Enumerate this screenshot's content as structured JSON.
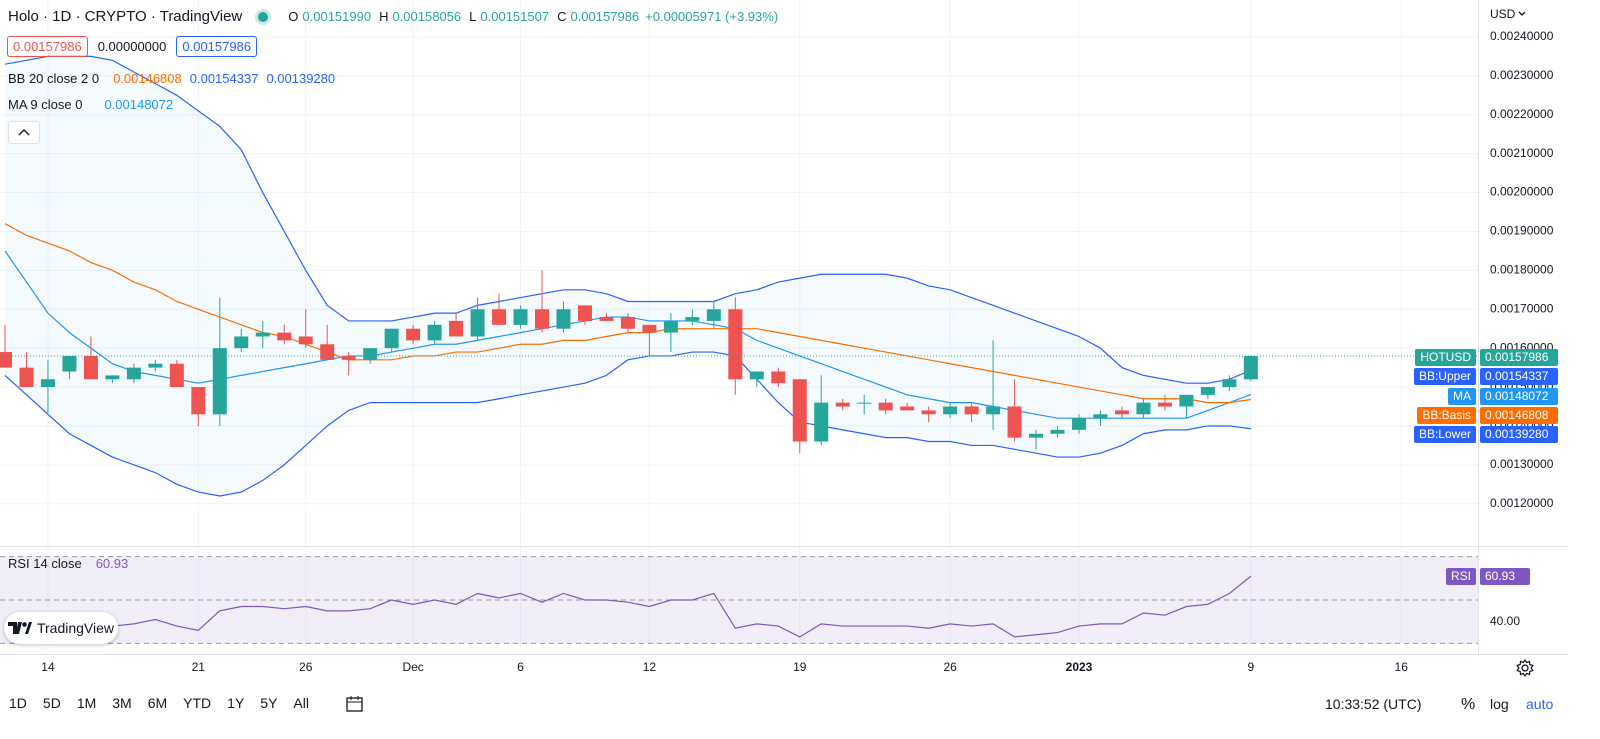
{
  "header": {
    "title": "Holo · 1D · CRYPTO · TradingView",
    "ohlc": [
      {
        "label": "O",
        "value": "0.00151990"
      },
      {
        "label": "H",
        "value": "0.00158056"
      },
      {
        "label": "L",
        "value": "0.00151507"
      },
      {
        "label": "C",
        "value": "0.00157986"
      }
    ],
    "change": "+0.00005971 (+3.93%)",
    "currency": "USD"
  },
  "inputs": [
    "0.00157986",
    "0.00000000",
    "0.00157986"
  ],
  "badge": "TradingView",
  "toolbar": {
    "ranges": [
      "1D",
      "5D",
      "1M",
      "3M",
      "6M",
      "YTD",
      "1Y",
      "5Y",
      "All"
    ],
    "time": "10:33:52 (UTC)",
    "percent": "%",
    "log": "log",
    "auto": "auto"
  },
  "chart_data": [
    {
      "type": "candlestick",
      "symbol": "HOTUSD",
      "indicator_labels": {
        "bb": "BB 20 close 2 0",
        "ma": "MA 9 close 0"
      },
      "up_color": "#26a69a",
      "down_color": "#ef5350",
      "grid": true,
      "categories": [
        null,
        null,
        "14",
        null,
        null,
        null,
        null,
        null,
        null,
        "21",
        null,
        null,
        null,
        null,
        "26",
        null,
        null,
        null,
        null,
        "Dec",
        null,
        null,
        null,
        null,
        "6",
        null,
        null,
        null,
        null,
        null,
        "12",
        null,
        null,
        null,
        null,
        null,
        null,
        "19",
        null,
        null,
        null,
        null,
        null,
        null,
        "26",
        null,
        null,
        null,
        null,
        null,
        "2023",
        null,
        null,
        null,
        null,
        null,
        null,
        null,
        "9",
        null,
        null,
        null,
        null,
        null,
        null,
        "16"
      ],
      "open": [
        0.00159,
        0.00155,
        0.0015,
        0.00154,
        0.00158,
        0.00152,
        0.00152,
        0.00155,
        0.00156,
        0.0015,
        0.00143,
        0.0016,
        0.00163,
        0.00164,
        0.00163,
        0.00161,
        0.00158,
        0.00157,
        0.0016,
        0.00165,
        0.00162,
        0.00167,
        0.00163,
        0.0017,
        0.00166,
        0.0017,
        0.00165,
        0.00171,
        0.00168,
        0.00168,
        0.00166,
        0.00164,
        0.00167,
        0.00167,
        0.0017,
        0.00152,
        0.00154,
        0.00152,
        0.00136,
        0.00146,
        0.00146,
        0.00146,
        0.00145,
        0.00144,
        0.00143,
        0.00145,
        0.00143,
        0.00145,
        0.00137,
        0.00138,
        0.00139,
        0.00142,
        0.00144,
        0.00143,
        0.00146,
        0.00145,
        0.00148,
        0.0015,
        0.0015199,
        null,
        null,
        null,
        null,
        null,
        null,
        null
      ],
      "high": [
        0.00166,
        0.00159,
        0.00157,
        0.00158,
        0.00163,
        0.00153,
        0.00156,
        0.00157,
        0.00157,
        0.0015,
        0.00173,
        0.00165,
        0.00167,
        0.00166,
        0.0017,
        0.00166,
        0.00159,
        0.0016,
        0.00165,
        0.00166,
        0.00167,
        0.00169,
        0.00173,
        0.00174,
        0.00171,
        0.0018,
        0.00172,
        0.00171,
        0.00169,
        0.00169,
        0.00166,
        0.00169,
        0.0017,
        0.00172,
        0.00173,
        0.00154,
        0.00155,
        0.00152,
        0.00153,
        0.00147,
        0.00148,
        0.00147,
        0.00146,
        0.00145,
        0.00146,
        0.00146,
        0.00162,
        0.00152,
        0.00139,
        0.0014,
        0.00143,
        0.00144,
        0.00145,
        0.00147,
        0.00148,
        0.00148,
        0.0015,
        0.00153,
        0.00158056,
        null,
        null,
        null,
        null,
        null,
        null,
        null
      ],
      "low": [
        0.00155,
        0.0015,
        0.00143,
        0.00152,
        0.00152,
        0.00151,
        0.00151,
        0.00154,
        0.0015,
        0.0014,
        0.0014,
        0.00159,
        0.0016,
        0.00161,
        0.0016,
        0.00157,
        0.00153,
        0.00156,
        0.00159,
        0.00161,
        0.00161,
        0.00163,
        0.00162,
        0.00166,
        0.00165,
        0.00164,
        0.00164,
        0.00166,
        0.00167,
        0.00164,
        0.00158,
        0.00159,
        0.00166,
        0.00165,
        0.00148,
        0.0015,
        0.0015,
        0.00133,
        0.00135,
        0.00144,
        0.00143,
        0.00143,
        0.00144,
        0.00141,
        0.00142,
        0.00141,
        0.00139,
        0.00136,
        0.00134,
        0.00137,
        0.00138,
        0.0014,
        0.00142,
        0.00142,
        0.00144,
        0.00142,
        0.00147,
        0.00149,
        0.00151507,
        null,
        null,
        null,
        null,
        null,
        null,
        null
      ],
      "close": [
        0.00155,
        0.0015,
        0.00152,
        0.00158,
        0.00152,
        0.00153,
        0.00155,
        0.00156,
        0.0015,
        0.00143,
        0.0016,
        0.00163,
        0.00164,
        0.00162,
        0.00161,
        0.00157,
        0.00157,
        0.0016,
        0.00165,
        0.00162,
        0.00166,
        0.00163,
        0.0017,
        0.00166,
        0.0017,
        0.00165,
        0.0017,
        0.00167,
        0.00167,
        0.00165,
        0.00164,
        0.00167,
        0.00168,
        0.0017,
        0.00152,
        0.00154,
        0.00151,
        0.00136,
        0.00146,
        0.00145,
        0.00146,
        0.00144,
        0.00144,
        0.00143,
        0.00145,
        0.00143,
        0.00145,
        0.00137,
        0.00138,
        0.00139,
        0.00142,
        0.00143,
        0.00143,
        0.00146,
        0.00145,
        0.00148,
        0.0015,
        0.00152,
        0.00157986,
        null,
        null,
        null,
        null,
        null,
        null,
        null
      ],
      "series": [
        {
          "name": "BB:Upper",
          "color": "#2962ff",
          "values": [
            0.00233,
            0.00234,
            0.00235,
            0.00235,
            0.00235,
            0.00234,
            0.00231,
            0.00228,
            0.00225,
            0.00221,
            0.00217,
            0.00211,
            0.002,
            0.0019,
            0.0018,
            0.00171,
            0.00167,
            0.00167,
            0.00167,
            0.00168,
            0.00169,
            0.00169,
            0.00171,
            0.00172,
            0.00173,
            0.00174,
            0.00175,
            0.00175,
            0.00174,
            0.00172,
            0.00172,
            0.00172,
            0.00172,
            0.00172,
            0.00174,
            0.00175,
            0.00177,
            0.00178,
            0.00179,
            0.00179,
            0.00179,
            0.00179,
            0.00178,
            0.00176,
            0.00175,
            0.00173,
            0.00171,
            0.00169,
            0.00167,
            0.00165,
            0.00163,
            0.0016,
            0.00155,
            0.00153,
            0.00152,
            0.00151,
            0.00151,
            0.00152,
            0.00154337,
            null,
            null,
            null,
            null,
            null,
            null,
            null
          ],
          "value_labels": [
            null,
            null,
            null,
            null,
            null,
            null,
            null,
            null,
            null,
            null,
            null,
            null,
            null,
            null,
            null,
            null,
            null,
            null,
            null,
            null,
            null,
            null,
            null,
            null,
            null,
            null,
            null,
            null,
            null,
            null,
            null,
            null,
            null,
            null,
            null,
            null,
            null,
            null,
            null,
            null,
            null,
            null,
            null,
            null,
            null,
            null,
            null,
            null,
            null,
            null,
            null,
            null,
            null,
            null,
            null,
            null,
            null,
            null,
            "0.00154337",
            null,
            null,
            null,
            null,
            null,
            null,
            null
          ]
        },
        {
          "name": "MA",
          "color": "#2196f3",
          "values": [
            0.00185,
            0.00177,
            0.00169,
            0.00164,
            0.0016,
            0.00156,
            0.00154,
            0.00153,
            0.00152,
            0.00151,
            0.00152,
            0.00153,
            0.00154,
            0.00155,
            0.00156,
            0.00157,
            0.00158,
            0.00158,
            0.00159,
            0.0016,
            0.00161,
            0.00161,
            0.00162,
            0.00163,
            0.00164,
            0.00165,
            0.00166,
            0.00167,
            0.00168,
            0.00168,
            0.00167,
            0.00167,
            0.00167,
            0.00166,
            0.00165,
            0.00162,
            0.0016,
            0.00158,
            0.00156,
            0.00154,
            0.00152,
            0.0015,
            0.00148,
            0.00147,
            0.00146,
            0.00146,
            0.00145,
            0.00144,
            0.00143,
            0.00142,
            0.00142,
            0.00142,
            0.00142,
            0.00142,
            0.00142,
            0.00142,
            0.00144,
            0.00146,
            0.00148072,
            null,
            null,
            null,
            null,
            null,
            null,
            null
          ],
          "value_labels": [
            null,
            null,
            null,
            null,
            null,
            null,
            null,
            null,
            null,
            null,
            null,
            null,
            null,
            null,
            null,
            null,
            null,
            null,
            null,
            null,
            null,
            null,
            null,
            null,
            null,
            null,
            null,
            null,
            null,
            null,
            null,
            null,
            null,
            null,
            null,
            null,
            null,
            null,
            null,
            null,
            null,
            null,
            null,
            null,
            null,
            null,
            null,
            null,
            null,
            null,
            null,
            null,
            null,
            null,
            null,
            null,
            null,
            null,
            "0.00148072",
            null,
            null,
            null,
            null,
            null,
            null,
            null
          ]
        },
        {
          "name": "BB:Basis",
          "color": "#ff6d00",
          "values": [
            0.00192,
            0.00189,
            0.00187,
            0.00185,
            0.00182,
            0.0018,
            0.00177,
            0.00175,
            0.00172,
            0.0017,
            0.00168,
            0.00166,
            0.00164,
            0.00163,
            0.00161,
            0.00159,
            0.00157,
            0.00157,
            0.00157,
            0.00158,
            0.00158,
            0.00159,
            0.00159,
            0.0016,
            0.00161,
            0.00161,
            0.00162,
            0.00162,
            0.00163,
            0.00164,
            0.00164,
            0.00165,
            0.00165,
            0.00165,
            0.00165,
            0.00165,
            0.00164,
            0.00163,
            0.00162,
            0.00161,
            0.0016,
            0.00159,
            0.00158,
            0.00157,
            0.00156,
            0.00155,
            0.00154,
            0.00153,
            0.00152,
            0.00151,
            0.0015,
            0.00149,
            0.00148,
            0.00147,
            0.00147,
            0.00147,
            0.00146,
            0.00146,
            0.00146808,
            null,
            null,
            null,
            null,
            null,
            null,
            null
          ],
          "value_labels": [
            null,
            null,
            null,
            null,
            null,
            null,
            null,
            null,
            null,
            null,
            null,
            null,
            null,
            null,
            null,
            null,
            null,
            null,
            null,
            null,
            null,
            null,
            null,
            null,
            null,
            null,
            null,
            null,
            null,
            null,
            null,
            null,
            null,
            null,
            null,
            null,
            null,
            null,
            null,
            null,
            null,
            null,
            null,
            null,
            null,
            null,
            null,
            null,
            null,
            null,
            null,
            null,
            null,
            null,
            null,
            null,
            null,
            null,
            "0.00146808",
            null,
            null,
            null,
            null,
            null,
            null,
            null
          ]
        },
        {
          "name": "BB:Lower",
          "color": "#2962ff",
          "values": [
            0.00153,
            0.00148,
            0.00143,
            0.00138,
            0.00135,
            0.00132,
            0.0013,
            0.00128,
            0.00125,
            0.00123,
            0.00122,
            0.00123,
            0.00126,
            0.0013,
            0.00135,
            0.0014,
            0.00144,
            0.00146,
            0.00146,
            0.00146,
            0.00146,
            0.00146,
            0.00146,
            0.00147,
            0.00148,
            0.00149,
            0.0015,
            0.00151,
            0.00153,
            0.00157,
            0.00158,
            0.00158,
            0.00159,
            0.00159,
            0.00158,
            0.00152,
            0.00146,
            0.00141,
            0.0014,
            0.00139,
            0.00138,
            0.00137,
            0.00137,
            0.00136,
            0.00136,
            0.00135,
            0.00135,
            0.00134,
            0.00133,
            0.00132,
            0.00132,
            0.00133,
            0.00135,
            0.00138,
            0.00139,
            0.00139,
            0.0014,
            0.0014,
            0.0013928,
            null,
            null,
            null,
            null,
            null,
            null,
            null
          ],
          "value_labels": [
            null,
            null,
            null,
            null,
            null,
            null,
            null,
            null,
            null,
            null,
            null,
            null,
            null,
            null,
            null,
            null,
            null,
            null,
            null,
            null,
            null,
            null,
            null,
            null,
            null,
            null,
            null,
            null,
            null,
            null,
            null,
            null,
            null,
            null,
            null,
            null,
            null,
            null,
            null,
            null,
            null,
            null,
            null,
            null,
            null,
            null,
            null,
            null,
            null,
            null,
            null,
            null,
            null,
            null,
            null,
            null,
            null,
            null,
            "0.00139280",
            null,
            null,
            null,
            null,
            null,
            null,
            null
          ]
        }
      ],
      "ylim": [
        0.001094,
        0.002495
      ],
      "yticks": [
        {
          "value": 0.0012,
          "label": "0.00120000"
        },
        {
          "value": 0.0013,
          "label": "0.00130000"
        },
        {
          "value": 0.0014,
          "label": "0.00140000"
        },
        {
          "value": 0.0015,
          "label": "0.00150000"
        },
        {
          "value": 0.0016,
          "label": "0.00160000"
        },
        {
          "value": 0.0017,
          "label": "0.00170000"
        },
        {
          "value": 0.0018,
          "label": "0.00180000"
        },
        {
          "value": 0.0019,
          "label": "0.00190000"
        },
        {
          "value": 0.002,
          "label": "0.00200000"
        },
        {
          "value": 0.0021,
          "label": "0.00210000"
        },
        {
          "value": 0.0022,
          "label": "0.00220000"
        },
        {
          "value": 0.0023,
          "label": "0.00230000"
        },
        {
          "value": 0.0024,
          "label": "0.00240000"
        }
      ]
    },
    {
      "type": "line",
      "title": "RSI 14 close",
      "series": [
        {
          "name": "RSI",
          "color": "#7e57c2",
          "values": [
            40,
            38,
            36,
            39,
            40,
            38,
            39,
            41,
            38,
            36,
            45,
            47,
            47,
            46,
            47,
            45,
            45,
            46,
            50,
            48,
            50,
            48,
            53,
            51,
            53,
            49,
            53,
            50,
            50,
            49,
            47,
            50,
            50,
            53,
            37,
            39,
            38,
            33,
            39,
            38,
            38,
            38,
            38,
            37,
            39,
            38,
            39,
            33,
            34,
            35,
            38,
            39,
            39,
            44,
            43,
            47,
            48,
            53,
            60.93,
            null,
            null,
            null,
            null,
            null,
            null,
            null
          ]
        }
      ],
      "ylim": [
        26.96,
        73.96
      ],
      "yticks": [
        {
          "value": 40,
          "label": "40.00"
        }
      ],
      "bands": [
        70,
        50,
        30
      ]
    }
  ]
}
